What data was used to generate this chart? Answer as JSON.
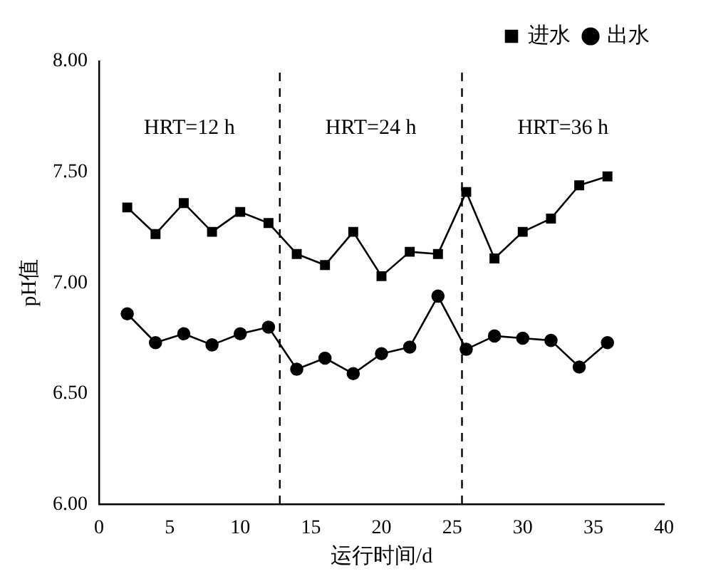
{
  "chart_data": {
    "type": "line",
    "xlabel": "运行时间/d",
    "ylabel": "pH值",
    "x": [
      2,
      4,
      6,
      8,
      10,
      12,
      14,
      16,
      18,
      20,
      22,
      24,
      26,
      28,
      30,
      32,
      34,
      36
    ],
    "series": [
      {
        "name": "进水",
        "color": "#000000",
        "marker": "square",
        "values": [
          7.34,
          7.22,
          7.36,
          7.23,
          7.32,
          7.27,
          7.13,
          7.08,
          7.23,
          7.03,
          7.14,
          7.13,
          7.41,
          7.11,
          7.23,
          7.29,
          7.44,
          7.48
        ]
      },
      {
        "name": "出水",
        "color": "#000000",
        "marker": "circle",
        "values": [
          6.86,
          6.73,
          6.77,
          6.72,
          6.77,
          6.8,
          6.61,
          6.66,
          6.59,
          6.68,
          6.71,
          6.94,
          6.7,
          6.76,
          6.75,
          6.74,
          6.62,
          6.73
        ]
      }
    ],
    "xlim": [
      0,
      40
    ],
    "xticks": [
      0,
      5,
      10,
      15,
      20,
      25,
      30,
      35,
      40
    ],
    "ylim": [
      6,
      8
    ],
    "yticks": [
      {
        "value": 6,
        "label": "6.00"
      },
      {
        "value": 6.5,
        "label": "6.50"
      },
      {
        "value": 7,
        "label": "7.00"
      },
      {
        "value": 7.5,
        "label": "7.50"
      },
      {
        "value": 8,
        "label": "8.00"
      }
    ],
    "ref_lines": [
      {
        "axis": "x",
        "value": 12.8,
        "line_style": "dashed"
      },
      {
        "axis": "x",
        "value": 25.7,
        "line_style": "dashed"
      }
    ],
    "annotations": [
      "HRT=12 h",
      "HRT=24 h",
      "HRT=36 h"
    ],
    "legend": "top right",
    "grid": false,
    "line_style": "solid"
  }
}
